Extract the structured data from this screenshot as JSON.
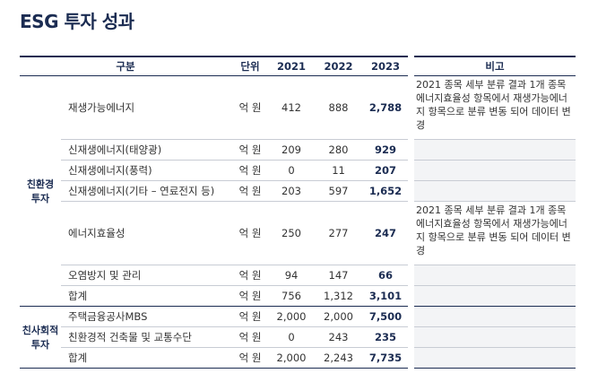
{
  "header": {
    "title": "ESG 투자 성과"
  },
  "table": {
    "columns": [
      "구분",
      "단위",
      "2021",
      "2022",
      "2023",
      "비고"
    ],
    "groups": [
      {
        "label": "친환경 투자",
        "rows": [
          {
            "item": "재생가능에너지",
            "unit": "억 원",
            "values": [
              "412",
              "888",
              "2,788"
            ],
            "note": "2021 종목 세부 분류 결과 1개 종목 에너지효율성 항목에서 재생가능에너지 항목으로 분류 변동 되어 데이터 변경"
          },
          {
            "item": "신재생에너지(태양광)",
            "unit": "억 원",
            "values": [
              "209",
              "280",
              "929"
            ]
          },
          {
            "item": "신재생에너지(풍력)",
            "unit": "억 원",
            "values": [
              "0",
              "11",
              "207"
            ]
          },
          {
            "item": "신재생에너지(기타 – 연료전지 등)",
            "unit": "억 원",
            "values": [
              "203",
              "597",
              "1,652"
            ]
          },
          {
            "item": "에너지효율성",
            "unit": "억 원",
            "values": [
              "250",
              "277",
              "247"
            ],
            "note": "2021 종목 세부 분류 결과 1개 종목 에너지효율성 항목에서 재생가능에너지 항목으로 분류 변동 되어 데이터 변경"
          },
          {
            "item": "오염방지 및 관리",
            "unit": "억 원",
            "values": [
              "94",
              "147",
              "66"
            ]
          },
          {
            "item": "합계",
            "unit": "억 원",
            "values": [
              "756",
              "1,312",
              "3,101"
            ]
          }
        ]
      },
      {
        "label": "친사회적 투자",
        "rows": [
          {
            "item": "주택금융공사MBS",
            "unit": "억 원",
            "values": [
              "2,000",
              "2,000",
              "7,500"
            ]
          },
          {
            "item": "친환경적 건축물 및 교통수단",
            "unit": "억 원",
            "values": [
              "0",
              "243",
              "235"
            ]
          },
          {
            "item": "합계",
            "unit": "억 원",
            "values": [
              "2,000",
              "2,243",
              "7,735"
            ]
          }
        ]
      }
    ]
  }
}
